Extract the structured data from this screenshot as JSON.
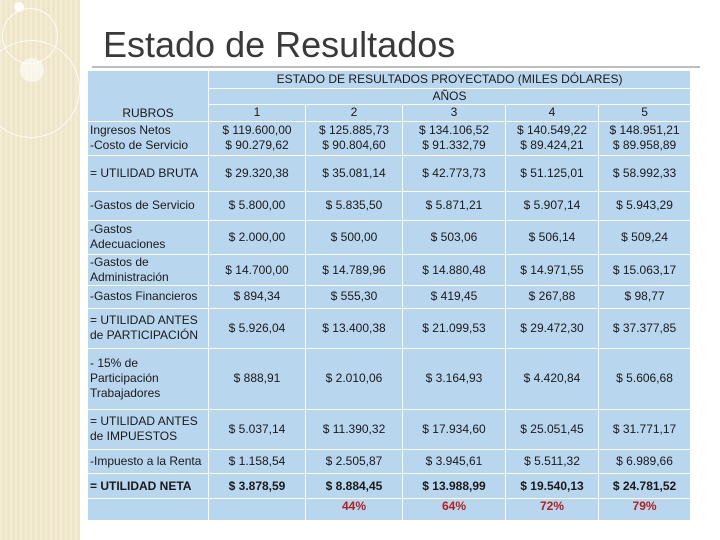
{
  "slide": {
    "title": "Estado de Resultados"
  },
  "table": {
    "caption": "ESTADO DE RESULTADOS PROYECTADO (MILES DÓLARES)",
    "years_label": "AÑOS",
    "years": [
      "1",
      "2",
      "3",
      "4",
      "5"
    ],
    "header_labels": [
      "RUBROS",
      "Ingresos Netos",
      "-Costo de Servicio"
    ],
    "ingresos": [
      "$ 119.600,00",
      "$ 125.885,73",
      "$ 134.106,52",
      "$ 140.549,22",
      "$ 148.951,21"
    ],
    "costo": [
      "$ 90.279,62",
      "$ 90.804,60",
      "$ 91.332,79",
      "$ 89.424,21",
      "$ 89.958,89"
    ],
    "rows": [
      {
        "label_lines": [
          "= UTILIDAD BRUTA"
        ],
        "values": [
          "$ 29.320,38",
          "$ 35.081,14",
          "$ 42.773,73",
          "$ 51.125,01",
          "$ 58.992,33"
        ]
      },
      {
        "label_lines": [
          "-Gastos de Servicio"
        ],
        "values": [
          "$ 5.800,00",
          "$ 5.835,50",
          "$ 5.871,21",
          "$ 5.907,14",
          "$ 5.943,29"
        ]
      },
      {
        "label_lines": [
          "-Gastos",
          "Adecuaciones"
        ],
        "values": [
          "$ 2.000,00",
          "$ 500,00",
          "$ 503,06",
          "$ 506,14",
          "$ 509,24"
        ]
      },
      {
        "label_lines": [
          "-Gastos de",
          "Administración"
        ],
        "values": [
          "$ 14.700,00",
          "$ 14.789,96",
          "$ 14.880,48",
          "$ 14.971,55",
          "$ 15.063,17"
        ]
      },
      {
        "label_lines": [
          "-Gastos Financieros"
        ],
        "values": [
          "$ 894,34",
          "$ 555,30",
          "$ 419,45",
          "$ 267,88",
          "$ 98,77"
        ]
      },
      {
        "label_lines": [
          " = UTILIDAD ANTES",
          "de PARTICIPACIÓN"
        ],
        "values": [
          "$ 5.926,04",
          "$ 13.400,38",
          "$ 21.099,53",
          "$ 29.472,30",
          "$ 37.377,85"
        ]
      },
      {
        "label_lines": [
          "- 15% de",
          "Participación",
          "Trabajadores"
        ],
        "values": [
          "$ 888,91",
          "$ 2.010,06",
          "$ 3.164,93",
          "$ 4.420,84",
          "$ 5.606,68"
        ]
      },
      {
        "label_lines": [
          " = UTILIDAD ANTES",
          "de IMPUESTOS"
        ],
        "values": [
          "$ 5.037,14",
          "$ 11.390,32",
          "$ 17.934,60",
          "$ 25.051,45",
          "$ 31.771,17"
        ]
      },
      {
        "label_lines": [
          "-Impuesto a la Renta"
        ],
        "values": [
          "$ 1.158,54",
          "$ 2.505,87",
          "$ 3.945,61",
          "$ 5.511,32",
          "$ 6.989,66"
        ]
      },
      {
        "label_lines": [
          "= UTILIDAD NETA"
        ],
        "values": [
          "$ 3.878,59",
          "$ 8.884,45",
          "$ 13.988,99",
          "$ 19.540,13",
          "$ 24.781,52"
        ],
        "bold": true
      }
    ],
    "percentages": [
      "44%",
      "64%",
      "72%",
      "79%"
    ]
  },
  "colors": {
    "table_bg": "#b8d6ee",
    "percent_text": "#b32020",
    "title_text": "#3a3a3a",
    "left_strip": "#efe6c8"
  }
}
